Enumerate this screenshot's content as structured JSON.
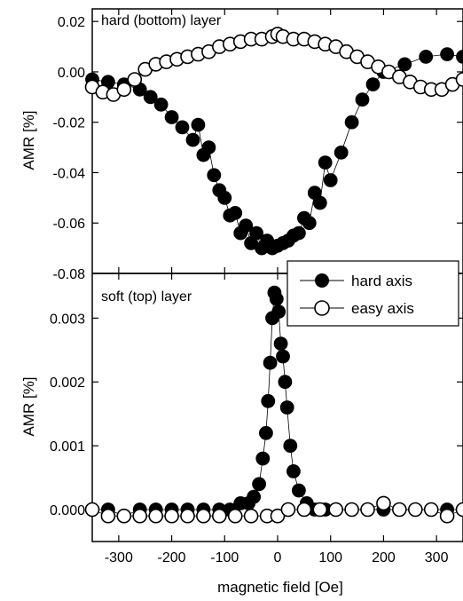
{
  "chart_data": [
    {
      "type": "scatter",
      "panel": "top",
      "annotation": "hard (bottom) layer",
      "xlabel": "",
      "ylabel": "AMR [%]",
      "xlim": [
        -350,
        350
      ],
      "ylim": [
        -0.08,
        0.025
      ],
      "xticks": [
        -300,
        -200,
        -100,
        0,
        100,
        200,
        300
      ],
      "xtick_labels": [],
      "yticks": [
        -0.08,
        -0.06,
        -0.04,
        -0.02,
        0.0,
        0.02
      ],
      "ytick_labels": [
        "-0.08",
        "-0.06",
        "-0.04",
        "-0.02",
        "0.00",
        "0.02"
      ],
      "grid": false,
      "series": [
        {
          "name": "hard axis",
          "marker": "filled-circle",
          "x": [
            -350,
            -320,
            -290,
            -260,
            -240,
            -220,
            -200,
            -180,
            -160,
            -140,
            -120,
            -100,
            -80,
            -60,
            -40,
            -20,
            0,
            20,
            40,
            60,
            80,
            100,
            120,
            140,
            160,
            180,
            200,
            240,
            280,
            320,
            350,
            -150,
            -130,
            -110,
            -90,
            -70,
            -50,
            -30,
            -10,
            10,
            30,
            50,
            70,
            90
          ],
          "y": [
            -0.003,
            -0.004,
            -0.005,
            -0.007,
            -0.01,
            -0.013,
            -0.018,
            -0.022,
            -0.027,
            -0.033,
            -0.041,
            -0.05,
            -0.056,
            -0.061,
            -0.064,
            -0.067,
            -0.069,
            -0.067,
            -0.064,
            -0.06,
            -0.052,
            -0.043,
            -0.032,
            -0.02,
            -0.011,
            -0.005,
            0.0,
            0.003,
            0.006,
            0.007,
            0.006,
            -0.021,
            -0.03,
            -0.047,
            -0.057,
            -0.064,
            -0.068,
            -0.07,
            -0.07,
            -0.068,
            -0.065,
            -0.058,
            -0.048,
            -0.036
          ]
        },
        {
          "name": "easy axis",
          "marker": "open-circle",
          "x": [
            -350,
            -330,
            -310,
            -290,
            -270,
            -250,
            -230,
            -210,
            -190,
            -170,
            -150,
            -130,
            -110,
            -90,
            -70,
            -50,
            -30,
            -10,
            0,
            10,
            30,
            50,
            70,
            90,
            110,
            130,
            150,
            170,
            190,
            210,
            230,
            250,
            270,
            290,
            310,
            330,
            350
          ],
          "y": [
            -0.006,
            -0.008,
            -0.009,
            -0.007,
            -0.003,
            0.001,
            0.003,
            0.004,
            0.005,
            0.006,
            0.007,
            0.008,
            0.01,
            0.011,
            0.012,
            0.013,
            0.013,
            0.014,
            0.015,
            0.014,
            0.013,
            0.013,
            0.012,
            0.011,
            0.01,
            0.008,
            0.006,
            0.004,
            0.002,
            0.0,
            -0.002,
            -0.004,
            -0.006,
            -0.007,
            -0.007,
            -0.005,
            -0.003
          ]
        }
      ]
    },
    {
      "type": "scatter",
      "panel": "bottom",
      "annotation": "soft (top) layer",
      "xlabel": "magnetic field [Oe]",
      "ylabel": "AMR [%]",
      "xlim": [
        -350,
        350
      ],
      "ylim": [
        -0.0005,
        0.0037
      ],
      "xticks": [
        -300,
        -200,
        -100,
        0,
        100,
        200,
        300
      ],
      "xtick_labels": [
        "-300",
        "-200",
        "-100",
        "0",
        "100",
        "200",
        "300"
      ],
      "yticks": [
        0.0,
        0.001,
        0.002,
        0.003
      ],
      "ytick_labels": [
        "0.000",
        "0.001",
        "0.002",
        "0.003"
      ],
      "grid": false,
      "legend": {
        "placement": "top-right",
        "entries": [
          "hard axis",
          "easy axis"
        ]
      },
      "series": [
        {
          "name": "hard axis",
          "marker": "filled-circle",
          "x": [
            -350,
            -320,
            -290,
            -260,
            -230,
            -200,
            -170,
            -140,
            -110,
            -90,
            -70,
            -55,
            -45,
            -35,
            -28,
            -22,
            -18,
            -14,
            -10,
            -6,
            -2,
            2,
            6,
            10,
            14,
            18,
            24,
            30,
            40,
            55,
            70,
            90,
            110,
            140,
            170,
            200,
            230,
            260,
            290,
            320,
            350
          ],
          "y": [
            0.0,
            0.0,
            -0.0001,
            0.0,
            0.0,
            0.0,
            0.0,
            0.0,
            0.0,
            0.0,
            0.0001,
            0.0001,
            0.0002,
            0.0004,
            0.0008,
            0.0012,
            0.0017,
            0.0023,
            0.003,
            0.0034,
            0.0033,
            0.0031,
            0.0026,
            0.0024,
            0.002,
            0.0016,
            0.001,
            0.0006,
            0.0003,
            0.0001,
            0.0,
            0.0,
            0.0,
            0.0,
            0.0,
            0.0,
            0.0,
            0.0,
            0.0,
            0.0,
            0.0
          ]
        },
        {
          "name": "easy axis",
          "marker": "open-circle",
          "x": [
            -350,
            -320,
            -290,
            -260,
            -230,
            -200,
            -170,
            -140,
            -110,
            -80,
            -50,
            -20,
            0,
            20,
            50,
            80,
            110,
            140,
            170,
            200,
            230,
            260,
            290,
            320,
            350
          ],
          "y": [
            0.0,
            -0.0001,
            -0.0001,
            -0.0001,
            -0.0001,
            -0.0001,
            -0.0001,
            -0.0001,
            -0.0001,
            -0.0001,
            -0.0001,
            -0.0001,
            -0.0001,
            0.0,
            0.0,
            0.0,
            0.0,
            0.0,
            0.0,
            0.0001,
            0.0,
            0.0,
            0.0,
            -0.0001,
            0.0
          ]
        }
      ]
    }
  ]
}
